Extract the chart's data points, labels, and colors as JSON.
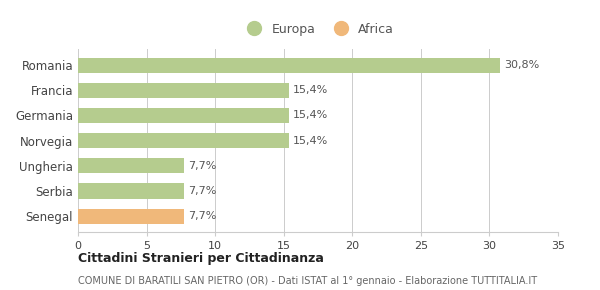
{
  "categories": [
    "Senegal",
    "Serbia",
    "Ungheria",
    "Norvegia",
    "Germania",
    "Francia",
    "Romania"
  ],
  "values": [
    7.7,
    7.7,
    7.7,
    15.4,
    15.4,
    15.4,
    30.8
  ],
  "labels": [
    "7,7%",
    "7,7%",
    "7,7%",
    "15,4%",
    "15,4%",
    "15,4%",
    "30,8%"
  ],
  "colors": [
    "#f0b87a",
    "#b5cc8e",
    "#b5cc8e",
    "#b5cc8e",
    "#b5cc8e",
    "#b5cc8e",
    "#b5cc8e"
  ],
  "legend_labels": [
    "Europa",
    "Africa"
  ],
  "legend_colors": [
    "#b5cc8e",
    "#f0b87a"
  ],
  "xlim": [
    0,
    35
  ],
  "xticks": [
    0,
    5,
    10,
    15,
    20,
    25,
    30,
    35
  ],
  "title1": "Cittadini Stranieri per Cittadinanza",
  "title2": "COMUNE DI BARATILI SAN PIETRO (OR) - Dati ISTAT al 1° gennaio - Elaborazione TUTTITALIA.IT",
  "background_color": "#ffffff",
  "grid_color": "#cccccc"
}
